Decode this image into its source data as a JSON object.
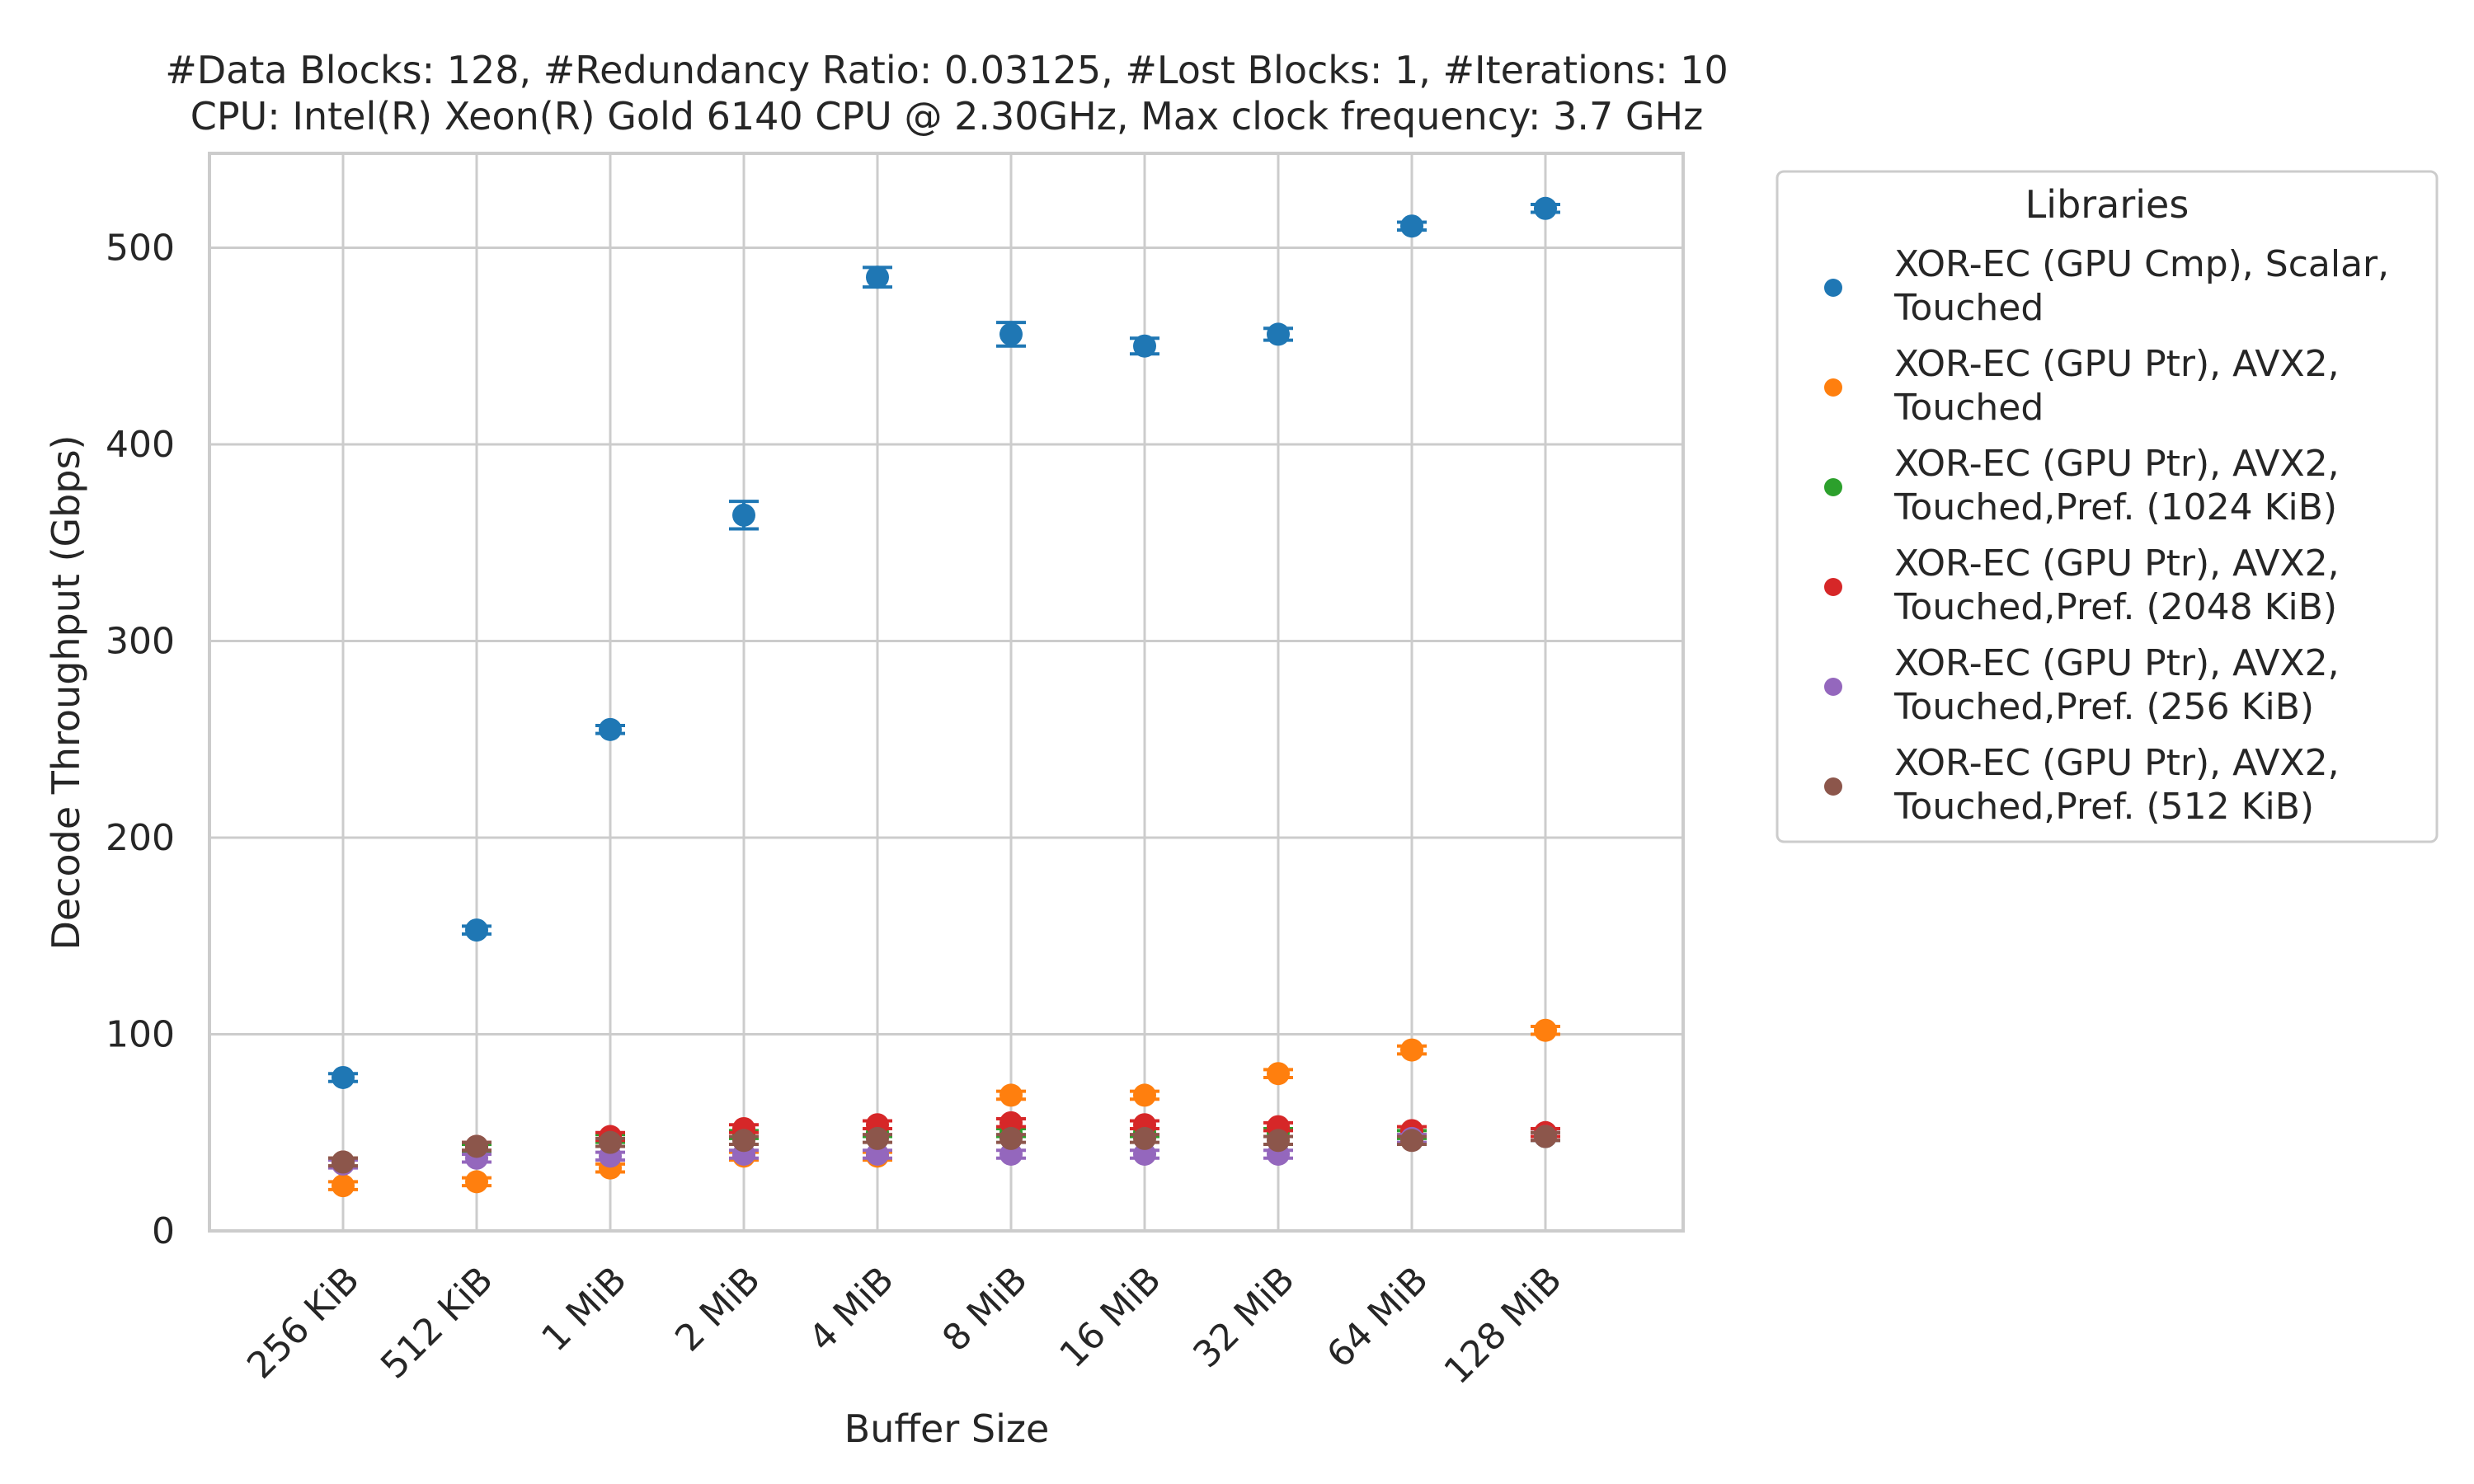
{
  "chart_data": {
    "type": "scatter",
    "title_lines": [
      "#Data Blocks: 128, #Redundancy Ratio: 0.03125, #Lost Blocks: 1, #Iterations: 10",
      "CPU: Intel(R) Xeon(R) Gold 6140 CPU @ 2.30GHz, Max clock frequency: 3.7 GHz"
    ],
    "xlabel": "Buffer Size",
    "ylabel": "Decode Throughput (Gbps)",
    "categories": [
      "256 KiB",
      "512 KiB",
      "1 MiB",
      "2 MiB",
      "4 MiB",
      "8 MiB",
      "16 MiB",
      "32 MiB",
      "64 MiB",
      "128 MiB"
    ],
    "ylim": [
      0,
      548
    ],
    "yticks": [
      0,
      100,
      200,
      300,
      400,
      500
    ],
    "grid": true,
    "legend": {
      "title": "Libraries",
      "placement": "outside-right"
    },
    "series": [
      {
        "name_lines": [
          "XOR-EC (GPU Cmp), Scalar,",
          "Touched"
        ],
        "color": "#1f77b4",
        "values": [
          78,
          153,
          255,
          364,
          485,
          456,
          450,
          456,
          511,
          520
        ],
        "errors": [
          2,
          2,
          2,
          7,
          5,
          6,
          4,
          3,
          2,
          2
        ]
      },
      {
        "name_lines": [
          "XOR-EC (GPU Ptr), AVX2,",
          "Touched"
        ],
        "color": "#ff7f0e",
        "values": [
          23,
          25,
          32,
          38,
          38,
          69,
          69,
          80,
          92,
          102
        ],
        "errors": [
          2,
          2,
          2,
          2,
          2,
          2,
          2,
          2,
          2,
          2
        ]
      },
      {
        "name_lines": [
          "XOR-EC (GPU Ptr), AVX2,",
          "Touched,Pref. (1024 KiB)"
        ],
        "color": "#2ca02c",
        "values": [
          35,
          42,
          47,
          49,
          50,
          50,
          50,
          50,
          49,
          48
        ],
        "errors": [
          2,
          2,
          2,
          2,
          2,
          2,
          2,
          2,
          2,
          2
        ]
      },
      {
        "name_lines": [
          "XOR-EC (GPU Ptr), AVX2,",
          "Touched,Pref. (2048 KiB)"
        ],
        "color": "#d62728",
        "values": [
          35,
          43,
          48,
          52,
          54,
          55,
          54,
          53,
          51,
          50
        ],
        "errors": [
          2,
          2,
          2,
          2,
          2,
          2,
          2,
          2,
          2,
          2
        ]
      },
      {
        "name_lines": [
          "XOR-EC (GPU Ptr), AVX2,",
          "Touched,Pref. (256 KiB)"
        ],
        "color": "#9467bd",
        "values": [
          34,
          37,
          38,
          39,
          39,
          39,
          39,
          39,
          47,
          48
        ],
        "errors": [
          2,
          2,
          2,
          2,
          2,
          2,
          2,
          2,
          2,
          2
        ]
      },
      {
        "name_lines": [
          "XOR-EC (GPU Ptr), AVX2,",
          "Touched,Pref. (512 KiB)"
        ],
        "color": "#8c564b",
        "values": [
          35,
          43,
          45,
          46,
          47,
          47,
          47,
          46,
          46,
          48
        ],
        "errors": [
          2,
          2,
          2,
          2,
          2,
          2,
          2,
          2,
          2,
          2
        ]
      }
    ]
  }
}
